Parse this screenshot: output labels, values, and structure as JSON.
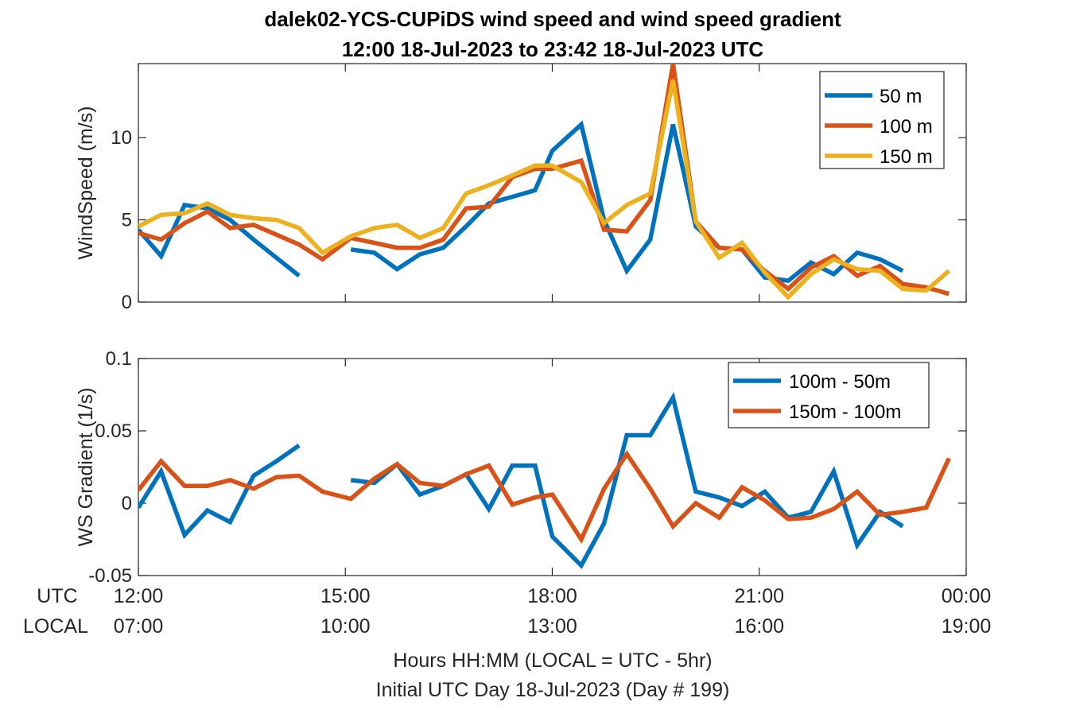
{
  "title_line1": "dalek02-YCS-CUPiDS  wind speed and wind speed gradient",
  "title_line2": "12:00 18-Jul-2023 to 23:42 18-Jul-2023  UTC",
  "utc_label": "UTC",
  "local_label": "LOCAL",
  "xlabel_line1": "Hours HH:MM  (LOCAL = UTC - 5hr)",
  "xlabel_line2": "Initial UTC Day 18-Jul-2023 (Day # 199)",
  "colors": {
    "blue": "#0072BD",
    "orange": "#D95319",
    "yellow": "#EDB120"
  },
  "chart_data": [
    {
      "type": "line",
      "ylabel": "WindSpeed (m/s)",
      "xlim": [
        12,
        24
      ],
      "ylim": [
        0,
        14.5
      ],
      "yticks": [
        0,
        5,
        10
      ],
      "xticks": [
        12,
        15,
        18,
        21,
        24
      ],
      "xtick_labels_utc": [
        "12:00",
        "15:00",
        "18:00",
        "21:00",
        "00:00"
      ],
      "xtick_labels_local": [
        "07:00",
        "10:00",
        "13:00",
        "16:00",
        "19:00"
      ],
      "grid": false,
      "legend_position": "top-right",
      "x_unit": "hours UTC",
      "series": [
        {
          "name": "50 m",
          "color": "#0072BD",
          "segments": [
            [
              [
                12.0,
                4.4
              ],
              [
                12.33,
                2.8
              ],
              [
                12.67,
                5.9
              ],
              [
                13.0,
                5.7
              ],
              [
                13.33,
                5.0
              ],
              [
                13.67,
                3.8
              ],
              [
                14.0,
                2.7
              ],
              [
                14.33,
                1.6
              ]
            ],
            [
              [
                15.08,
                3.2
              ],
              [
                15.42,
                3.0
              ],
              [
                15.75,
                2.0
              ],
              [
                16.08,
                2.9
              ],
              [
                16.42,
                3.3
              ],
              [
                16.75,
                4.6
              ],
              [
                17.08,
                6.0
              ],
              [
                17.42,
                6.4
              ],
              [
                17.75,
                6.8
              ],
              [
                18.0,
                9.2
              ],
              [
                18.42,
                10.8
              ],
              [
                18.75,
                5.0
              ],
              [
                19.08,
                1.9
              ],
              [
                19.42,
                3.8
              ],
              [
                19.75,
                10.8
              ],
              [
                20.08,
                4.6
              ],
              [
                20.42,
                3.3
              ],
              [
                20.75,
                3.2
              ],
              [
                21.08,
                1.5
              ],
              [
                21.42,
                1.3
              ],
              [
                21.75,
                2.4
              ],
              [
                22.08,
                1.7
              ],
              [
                22.42,
                3.0
              ],
              [
                22.75,
                2.6
              ],
              [
                23.08,
                1.9
              ]
            ]
          ]
        },
        {
          "name": "100 m",
          "color": "#D95319",
          "segments": [
            [
              [
                12.0,
                4.2
              ],
              [
                12.33,
                3.8
              ],
              [
                12.67,
                4.8
              ],
              [
                13.0,
                5.5
              ],
              [
                13.33,
                4.5
              ],
              [
                13.67,
                4.7
              ],
              [
                14.0,
                4.1
              ],
              [
                14.33,
                3.5
              ],
              [
                14.67,
                2.6
              ],
              [
                15.08,
                3.9
              ],
              [
                15.42,
                3.6
              ],
              [
                15.75,
                3.3
              ],
              [
                16.08,
                3.3
              ],
              [
                16.42,
                3.8
              ],
              [
                16.75,
                5.7
              ],
              [
                17.08,
                5.8
              ],
              [
                17.42,
                7.6
              ],
              [
                17.75,
                8.1
              ],
              [
                18.0,
                8.1
              ],
              [
                18.42,
                8.6
              ],
              [
                18.75,
                4.4
              ],
              [
                19.08,
                4.3
              ],
              [
                19.42,
                6.2
              ],
              [
                19.75,
                14.5
              ],
              [
                20.08,
                4.9
              ],
              [
                20.42,
                3.3
              ],
              [
                20.75,
                3.2
              ],
              [
                21.08,
                1.9
              ],
              [
                21.42,
                0.8
              ],
              [
                21.75,
                2.1
              ],
              [
                22.08,
                2.8
              ],
              [
                22.42,
                1.6
              ],
              [
                22.75,
                2.2
              ],
              [
                23.08,
                1.1
              ],
              [
                23.42,
                0.9
              ],
              [
                23.75,
                0.5
              ]
            ]
          ]
        },
        {
          "name": "150 m",
          "color": "#EDB120",
          "segments": [
            [
              [
                12.0,
                4.6
              ],
              [
                12.33,
                5.3
              ],
              [
                12.67,
                5.4
              ],
              [
                13.0,
                6.0
              ],
              [
                13.33,
                5.3
              ],
              [
                13.67,
                5.1
              ],
              [
                14.0,
                5.0
              ],
              [
                14.33,
                4.5
              ],
              [
                14.67,
                3.0
              ],
              [
                15.08,
                4.0
              ],
              [
                15.42,
                4.5
              ],
              [
                15.75,
                4.7
              ],
              [
                16.08,
                3.9
              ],
              [
                16.42,
                4.5
              ],
              [
                16.75,
                6.6
              ],
              [
                17.08,
                7.1
              ],
              [
                17.42,
                7.7
              ],
              [
                17.75,
                8.3
              ],
              [
                18.0,
                8.3
              ],
              [
                18.42,
                7.3
              ],
              [
                18.75,
                4.8
              ],
              [
                19.08,
                5.9
              ],
              [
                19.42,
                6.6
              ],
              [
                19.75,
                13.5
              ],
              [
                20.08,
                4.9
              ],
              [
                20.42,
                2.7
              ],
              [
                20.75,
                3.6
              ],
              [
                21.08,
                1.8
              ],
              [
                21.42,
                0.3
              ],
              [
                21.75,
                1.7
              ],
              [
                22.08,
                2.6
              ],
              [
                22.42,
                2.0
              ],
              [
                22.75,
                1.9
              ],
              [
                23.08,
                0.8
              ],
              [
                23.42,
                0.7
              ],
              [
                23.75,
                1.9
              ]
            ]
          ]
        }
      ]
    },
    {
      "type": "line",
      "ylabel": "WS Gradient (1/s)",
      "xlim": [
        12,
        24
      ],
      "ylim": [
        -0.05,
        0.1
      ],
      "yticks": [
        -0.05,
        0,
        0.05,
        0.1
      ],
      "ytick_labels": [
        "-0.05",
        "0",
        "0.05",
        "0.1"
      ],
      "xticks": [
        12,
        15,
        18,
        21,
        24
      ],
      "grid": false,
      "legend_position": "top-right",
      "x_unit": "hours UTC",
      "series": [
        {
          "name": "100m - 50m",
          "color": "#0072BD",
          "segments": [
            [
              [
                12.0,
                -0.003
              ],
              [
                12.33,
                0.022
              ],
              [
                12.67,
                -0.022
              ],
              [
                13.0,
                -0.005
              ],
              [
                13.33,
                -0.013
              ],
              [
                13.67,
                0.019
              ],
              [
                14.0,
                0.029
              ],
              [
                14.33,
                0.04
              ]
            ],
            [
              [
                15.08,
                0.016
              ],
              [
                15.42,
                0.014
              ],
              [
                15.75,
                0.027
              ],
              [
                16.08,
                0.006
              ],
              [
                16.42,
                0.012
              ],
              [
                16.75,
                0.02
              ],
              [
                17.08,
                -0.004
              ],
              [
                17.42,
                0.026
              ],
              [
                17.75,
                0.026
              ],
              [
                18.0,
                -0.023
              ],
              [
                18.42,
                -0.043
              ],
              [
                18.75,
                -0.014
              ],
              [
                19.08,
                0.047
              ],
              [
                19.42,
                0.047
              ],
              [
                19.75,
                0.073
              ],
              [
                20.08,
                0.008
              ],
              [
                20.42,
                0.004
              ],
              [
                20.75,
                -0.002
              ],
              [
                21.08,
                0.008
              ],
              [
                21.42,
                -0.01
              ],
              [
                21.75,
                -0.006
              ],
              [
                22.08,
                0.022
              ],
              [
                22.42,
                -0.029
              ],
              [
                22.75,
                -0.006
              ],
              [
                23.08,
                -0.016
              ]
            ]
          ]
        },
        {
          "name": "150m - 100m",
          "color": "#D95319",
          "segments": [
            [
              [
                12.0,
                0.009
              ],
              [
                12.33,
                0.029
              ],
              [
                12.67,
                0.012
              ],
              [
                13.0,
                0.012
              ],
              [
                13.33,
                0.016
              ],
              [
                13.67,
                0.01
              ],
              [
                14.0,
                0.018
              ],
              [
                14.33,
                0.019
              ],
              [
                14.67,
                0.008
              ],
              [
                15.08,
                0.003
              ],
              [
                15.42,
                0.017
              ],
              [
                15.75,
                0.027
              ],
              [
                16.08,
                0.014
              ],
              [
                16.42,
                0.012
              ],
              [
                16.75,
                0.02
              ],
              [
                17.08,
                0.026
              ],
              [
                17.42,
                -0.001
              ],
              [
                17.75,
                0.004
              ],
              [
                18.0,
                0.006
              ],
              [
                18.42,
                -0.025
              ],
              [
                18.75,
                0.01
              ],
              [
                19.08,
                0.034
              ],
              [
                19.42,
                0.01
              ],
              [
                19.75,
                -0.016
              ],
              [
                20.08,
                0.0
              ],
              [
                20.42,
                -0.01
              ],
              [
                20.75,
                0.011
              ],
              [
                21.08,
                0.002
              ],
              [
                21.42,
                -0.011
              ],
              [
                21.75,
                -0.01
              ],
              [
                22.08,
                -0.004
              ],
              [
                22.42,
                0.008
              ],
              [
                22.75,
                -0.008
              ],
              [
                23.08,
                -0.006
              ],
              [
                23.42,
                -0.003
              ],
              [
                23.75,
                0.031
              ]
            ]
          ]
        }
      ]
    }
  ]
}
